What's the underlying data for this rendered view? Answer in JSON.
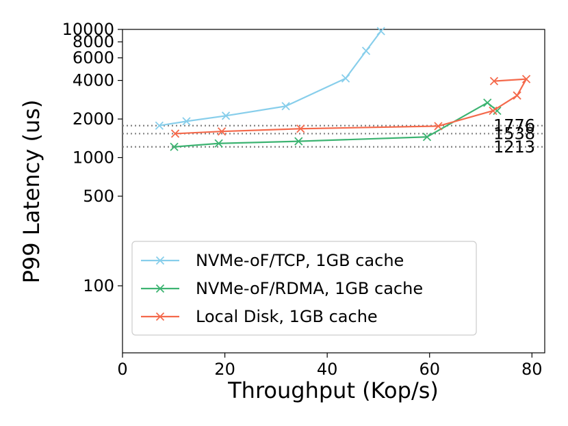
{
  "chart_data": {
    "type": "line",
    "xlabel": "Throughput (Kop/s)",
    "ylabel": "P99 Latency (us)",
    "xlim": [
      0,
      82.5
    ],
    "ylim": [
      30,
      10000
    ],
    "yscale": "log",
    "grid": false,
    "legend_position": "lower-left",
    "x_ticks": [
      0,
      20,
      40,
      60,
      80
    ],
    "y_ticks": [
      100,
      500,
      1000,
      2000,
      4000,
      6000,
      8000,
      10000
    ],
    "reference_lines": [
      {
        "value": 1776,
        "label": "1776",
        "color": "#808080",
        "style": "dotted"
      },
      {
        "value": 1538,
        "label": "1538",
        "color": "#808080",
        "style": "dotted"
      },
      {
        "value": 1213,
        "label": "1213",
        "color": "#808080",
        "style": "dotted"
      }
    ],
    "series": [
      {
        "name": "NVMe-oF/TCP, 1GB cache",
        "color": "#87ceeb",
        "marker": "x",
        "x": [
          7.2,
          12.5,
          20.2,
          31.9,
          43.6,
          47.6,
          50.5
        ],
        "y": [
          1776,
          1920,
          2120,
          2520,
          4150,
          6800,
          9700
        ]
      },
      {
        "name": "NVMe-oF/RDMA, 1GB cache",
        "color": "#3cb371",
        "marker": "x",
        "x": [
          10.1,
          18.8,
          34.4,
          59.5,
          71.3,
          73.2
        ],
        "y": [
          1213,
          1290,
          1340,
          1450,
          2680,
          2320
        ]
      },
      {
        "name": "Local Disk, 1GB cache",
        "color": "#f4694b",
        "marker": "x",
        "x": [
          10.3,
          19.4,
          34.8,
          61.7,
          72.4,
          77.1,
          78.9,
          72.6
        ],
        "y": [
          1538,
          1600,
          1680,
          1760,
          2320,
          3050,
          4100,
          3950
        ]
      }
    ]
  }
}
